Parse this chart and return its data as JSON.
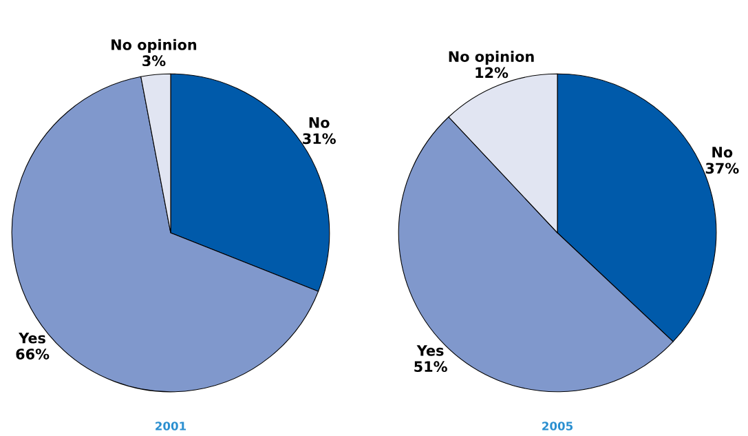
{
  "chart_data": [
    {
      "type": "pie",
      "title": "2001",
      "categories": [
        "No",
        "Yes",
        "No opinion"
      ],
      "values": [
        31,
        66,
        3
      ],
      "value_labels": [
        "31%",
        "66%",
        "3%"
      ],
      "colors": [
        "#005aaa",
        "#8098cc",
        "#e1e5f2"
      ]
    },
    {
      "type": "pie",
      "title": "2005",
      "categories": [
        "No",
        "Yes",
        "No opinion"
      ],
      "values": [
        37,
        51,
        12
      ],
      "value_labels": [
        "37%",
        "51%",
        "12%"
      ],
      "colors": [
        "#005aaa",
        "#8098cc",
        "#e1e5f2"
      ]
    }
  ]
}
